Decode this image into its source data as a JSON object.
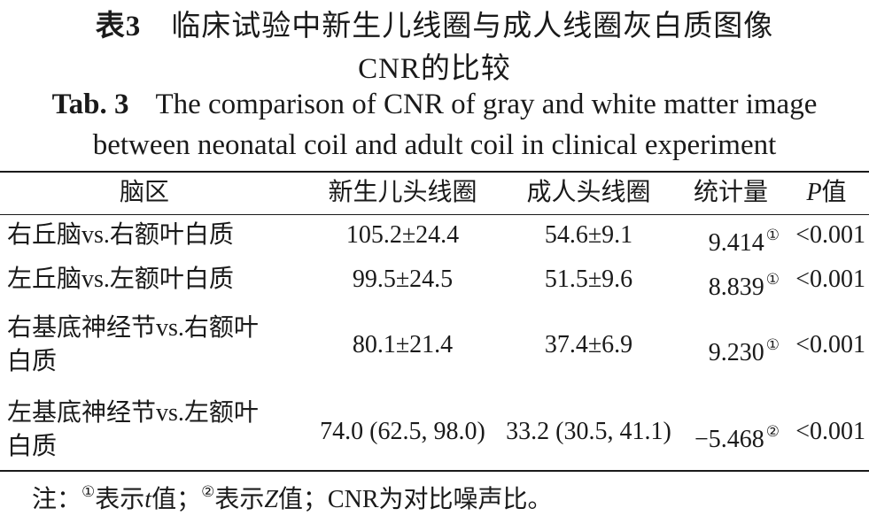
{
  "title_cn": {
    "label": "表3",
    "line1": "临床试验中新生儿线圈与成人线圈灰白质图像",
    "line2": "CNR的比较"
  },
  "title_en": {
    "label": "Tab. 3",
    "line1": "The comparison of CNR of gray and white matter image",
    "line2": "between neonatal coil and adult coil in clinical experiment"
  },
  "table": {
    "headers": [
      "脑区",
      "新生儿头线圈",
      "成人头线圈",
      "统计量",
      "P",
      "值"
    ],
    "rows": [
      {
        "region": "右丘脑vs.右额叶白质",
        "neonatal": "105.2±24.4",
        "adult": "54.6±9.1",
        "stat": "9.414",
        "mark": "①",
        "p": "<0.001"
      },
      {
        "region": "左丘脑vs.左额叶白质",
        "neonatal": "99.5±24.5",
        "adult": "51.5±9.6",
        "stat": "8.839",
        "mark": "①",
        "p": "<0.001"
      },
      {
        "region_line1": "右基底神经节vs.右额叶",
        "region_line2": "白质",
        "neonatal": "80.1±21.4",
        "adult": "37.4±6.9",
        "stat": "9.230",
        "mark": "①",
        "p": "<0.001"
      },
      {
        "region_line1": "左基底神经节vs.左额叶",
        "region_line2": "白质",
        "neonatal": "74.0 (62.5, 98.0)",
        "adult": "33.2 (30.5, 41.1)",
        "stat": "−5.468",
        "mark": "②",
        "p": "<0.001"
      }
    ]
  },
  "note": {
    "prefix": "注：",
    "m1": "①",
    "t1a": "表示",
    "t1var": "t",
    "t1b": "值；",
    "m2": "②",
    "t2a": "表示",
    "t2var": "Z",
    "t2b": "值；CNR为对比噪声比。"
  }
}
